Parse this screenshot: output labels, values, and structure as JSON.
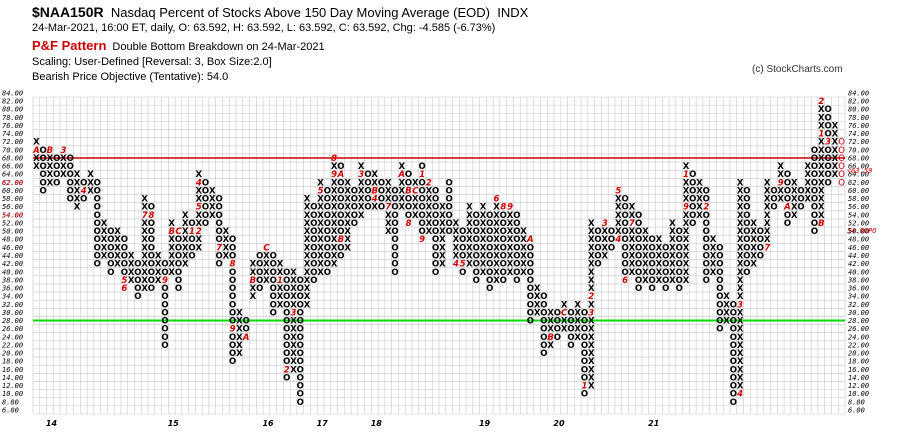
{
  "header": {
    "symbol": "$NAA150R",
    "name": "Nasdaq Percent of Stocks Above 150 Day Moving Average (EOD)",
    "exchange": "INDX",
    "quote": "24-Mar-2021, 16:00 ET, daily, O: 63.592, H: 63.592, L: 63.592, C: 63.592, Chg: -4.585 (-6.73%)",
    "pattern_title": "P&F Pattern",
    "pattern_text": "Double Bottom Breakdown on 24-Mar-2021",
    "scaling": "Scaling: User-Defined [Reversal: 3, Box Size:2.0]",
    "objective": "Bearish Price Objective (Tentative): 54.0",
    "copyright": "(c) StockCharts.com"
  },
  "chart_data": {
    "type": "point-and-figure",
    "box_size": 2.0,
    "reversal": 3,
    "ylim": [
      6,
      84
    ],
    "y_ticks": [
      84,
      82,
      80,
      78,
      76,
      74,
      72,
      70,
      68,
      66,
      64,
      62,
      60,
      58,
      56,
      54,
      52,
      50,
      48,
      46,
      44,
      42,
      40,
      38,
      36,
      34,
      32,
      30,
      28,
      26,
      24,
      22,
      20,
      18,
      16,
      14,
      12,
      10,
      8,
      6
    ],
    "year_labels": [
      "14",
      "15",
      "16",
      "17",
      "18",
      "19",
      "20",
      "21"
    ],
    "year_label_columns": [
      2,
      20,
      34,
      42,
      50,
      66,
      77,
      91
    ],
    "resistance_level": 69,
    "support_level": 29,
    "last_price_label": "<63.59",
    "left_price_label": "62.00",
    "objective_label": "54.00PO",
    "left_objective_label": "54.00",
    "columns": [
      {
        "t": "X",
        "lo": 66,
        "hi": 72,
        "m": {
          "70": "A"
        }
      },
      {
        "t": "O",
        "lo": 60,
        "hi": 70,
        "m": {}
      },
      {
        "t": "X",
        "lo": 62,
        "hi": 70,
        "m": {
          "70": "B"
        }
      },
      {
        "t": "O",
        "lo": 62,
        "hi": 68,
        "m": {
          "70": "1"
        }
      },
      {
        "t": "X",
        "lo": 64,
        "hi": 70,
        "m": {
          "70": "3"
        }
      },
      {
        "t": "O",
        "lo": 58,
        "hi": 68,
        "m": {}
      },
      {
        "t": "X",
        "lo": 56,
        "hi": 64,
        "m": {}
      },
      {
        "t": "O",
        "lo": 58,
        "hi": 62,
        "m": {
          "60": "4"
        }
      },
      {
        "t": "X",
        "lo": 60,
        "hi": 64,
        "m": {}
      },
      {
        "t": "O",
        "lo": 42,
        "hi": 62,
        "m": {}
      },
      {
        "t": "X",
        "lo": 44,
        "hi": 52,
        "m": {}
      },
      {
        "t": "O",
        "lo": 40,
        "hi": 50,
        "m": {}
      },
      {
        "t": "X",
        "lo": 42,
        "hi": 50,
        "m": {}
      },
      {
        "t": "O",
        "lo": 36,
        "hi": 48,
        "m": {
          "38": "5",
          "36": "6"
        }
      },
      {
        "t": "X",
        "lo": 38,
        "hi": 44,
        "m": {}
      },
      {
        "t": "O",
        "lo": 34,
        "hi": 42,
        "m": {}
      },
      {
        "t": "X",
        "lo": 36,
        "hi": 58,
        "m": {
          "54": "7"
        }
      },
      {
        "t": "O",
        "lo": 36,
        "hi": 56,
        "m": {
          "54": "8"
        }
      },
      {
        "t": "X",
        "lo": 38,
        "hi": 44,
        "m": {}
      },
      {
        "t": "O",
        "lo": 22,
        "hi": 42,
        "m": {
          "38": "9"
        }
      },
      {
        "t": "X",
        "lo": 40,
        "hi": 52,
        "m": {
          "50": "B"
        }
      },
      {
        "t": "O",
        "lo": 36,
        "hi": 50,
        "m": {
          "50": "C"
        }
      },
      {
        "t": "X",
        "lo": 42,
        "hi": 54,
        "m": {}
      },
      {
        "t": "O",
        "lo": 44,
        "hi": 52,
        "m": {
          "50": "1"
        }
      },
      {
        "t": "X",
        "lo": 46,
        "hi": 64,
        "m": {
          "62": "4",
          "56": "5",
          "50": "2"
        }
      },
      {
        "t": "O",
        "lo": 52,
        "hi": 62,
        "m": {}
      },
      {
        "t": "X",
        "lo": 54,
        "hi": 60,
        "m": {}
      },
      {
        "t": "O",
        "lo": 42,
        "hi": 58,
        "m": {
          "46": "7"
        }
      },
      {
        "t": "X",
        "lo": 44,
        "hi": 50,
        "m": {}
      },
      {
        "t": "O",
        "lo": 18,
        "hi": 48,
        "m": {
          "42": "8",
          "26": "9"
        }
      },
      {
        "t": "X",
        "lo": 20,
        "hi": 30,
        "m": {}
      },
      {
        "t": "O",
        "lo": 24,
        "hi": 28,
        "m": {
          "24": "A"
        }
      },
      {
        "t": "X",
        "lo": 34,
        "hi": 42,
        "m": {
          "38": "B"
        }
      },
      {
        "t": "O",
        "lo": 36,
        "hi": 44,
        "m": {}
      },
      {
        "t": "X",
        "lo": 38,
        "hi": 46,
        "m": {
          "46": "C"
        }
      },
      {
        "t": "O",
        "lo": 30,
        "hi": 44,
        "m": {}
      },
      {
        "t": "X",
        "lo": 32,
        "hi": 42,
        "m": {
          "38": "1"
        }
      },
      {
        "t": "O",
        "lo": 14,
        "hi": 40,
        "m": {
          "16": "2"
        }
      },
      {
        "t": "X",
        "lo": 16,
        "hi": 40,
        "m": {
          "30": "3"
        }
      },
      {
        "t": "O",
        "lo": 8,
        "hi": 38,
        "m": {}
      },
      {
        "t": "X",
        "lo": 32,
        "hi": 58,
        "m": {}
      },
      {
        "t": "O",
        "lo": 38,
        "hi": 56,
        "m": {
          "58": "4"
        }
      },
      {
        "t": "X",
        "lo": 40,
        "hi": 62,
        "m": {
          "60": "5"
        }
      },
      {
        "t": "O",
        "lo": 40,
        "hi": 60,
        "m": {}
      },
      {
        "t": "X",
        "lo": 42,
        "hi": 68,
        "m": {
          "68": "8",
          "64": "9"
        }
      },
      {
        "t": "O",
        "lo": 44,
        "hi": 66,
        "m": {
          "64": "A",
          "48": "B"
        }
      },
      {
        "t": "X",
        "lo": 46,
        "hi": 62,
        "m": {}
      },
      {
        "t": "O",
        "lo": 52,
        "hi": 60,
        "m": {}
      },
      {
        "t": "X",
        "lo": 54,
        "hi": 66,
        "m": {
          "64": "3"
        }
      },
      {
        "t": "O",
        "lo": 56,
        "hi": 64,
        "m": {}
      },
      {
        "t": "X",
        "lo": 56,
        "hi": 64,
        "m": {
          "58": "4",
          "60": "B"
        }
      },
      {
        "t": "O",
        "lo": 56,
        "hi": 62,
        "m": {}
      },
      {
        "t": "X",
        "lo": 50,
        "hi": 62,
        "m": {
          "56": "7"
        }
      },
      {
        "t": "O",
        "lo": 40,
        "hi": 60,
        "m": {}
      },
      {
        "t": "X",
        "lo": 56,
        "hi": 66,
        "m": {
          "64": "A"
        }
      },
      {
        "t": "O",
        "lo": 52,
        "hi": 64,
        "m": {
          "60": "B",
          "52": "8"
        }
      },
      {
        "t": "X",
        "lo": 54,
        "hi": 62,
        "m": {
          "60": "C"
        }
      },
      {
        "t": "O",
        "lo": 48,
        "hi": 66,
        "m": {
          "64": "1",
          "48": "9"
        }
      },
      {
        "t": "X",
        "lo": 50,
        "hi": 62,
        "m": {
          "62": "2"
        }
      },
      {
        "t": "O",
        "lo": 40,
        "hi": 60,
        "m": {}
      },
      {
        "t": "X",
        "lo": 42,
        "hi": 56,
        "m": {}
      },
      {
        "t": "O",
        "lo": 50,
        "hi": 62,
        "m": {}
      },
      {
        "t": "X",
        "lo": 42,
        "hi": 52,
        "m": {
          "42": "4"
        }
      },
      {
        "t": "O",
        "lo": 40,
        "hi": 50,
        "m": {
          "42": "5"
        }
      },
      {
        "t": "X",
        "lo": 42,
        "hi": 56,
        "m": {}
      },
      {
        "t": "O",
        "lo": 38,
        "hi": 54,
        "m": {}
      },
      {
        "t": "X",
        "lo": 40,
        "hi": 56,
        "m": {}
      },
      {
        "t": "O",
        "lo": 36,
        "hi": 54,
        "m": {}
      },
      {
        "t": "X",
        "lo": 38,
        "hi": 58,
        "m": {
          "58": "6"
        }
      },
      {
        "t": "O",
        "lo": 38,
        "hi": 56,
        "m": {
          "56": "8"
        }
      },
      {
        "t": "X",
        "lo": 40,
        "hi": 56,
        "m": {
          "56": "9"
        }
      },
      {
        "t": "O",
        "lo": 38,
        "hi": 54,
        "m": {}
      },
      {
        "t": "X",
        "lo": 40,
        "hi": 50,
        "m": {}
      },
      {
        "t": "O",
        "lo": 28,
        "hi": 48,
        "m": {
          "48": "A"
        }
      },
      {
        "t": "X",
        "lo": 30,
        "hi": 36,
        "m": {}
      },
      {
        "t": "O",
        "lo": 20,
        "hi": 34,
        "m": {}
      },
      {
        "t": "X",
        "lo": 22,
        "hi": 30,
        "m": {
          "24": "B"
        }
      },
      {
        "t": "O",
        "lo": 24,
        "hi": 30,
        "m": {}
      },
      {
        "t": "X",
        "lo": 26,
        "hi": 32,
        "m": {
          "30": "C"
        }
      },
      {
        "t": "O",
        "lo": 22,
        "hi": 30,
        "m": {}
      },
      {
        "t": "X",
        "lo": 24,
        "hi": 32,
        "m": {}
      },
      {
        "t": "O",
        "lo": 10,
        "hi": 30,
        "m": {
          "12": "1"
        }
      },
      {
        "t": "X",
        "lo": 12,
        "hi": 52,
        "m": {
          "34": "2",
          "30": "3"
        }
      },
      {
        "t": "O",
        "lo": 42,
        "hi": 50,
        "m": {}
      },
      {
        "t": "X",
        "lo": 44,
        "hi": 52,
        "m": {
          "52": "3"
        }
      },
      {
        "t": "O",
        "lo": 46,
        "hi": 50,
        "m": {}
      },
      {
        "t": "X",
        "lo": 48,
        "hi": 60,
        "m": {
          "60": "5",
          "48": "4"
        }
      },
      {
        "t": "O",
        "lo": 38,
        "hi": 58,
        "m": {
          "38": "6"
        }
      },
      {
        "t": "X",
        "lo": 40,
        "hi": 56,
        "m": {
          "52": "7"
        }
      },
      {
        "t": "O",
        "lo": 36,
        "hi": 54,
        "m": {}
      },
      {
        "t": "X",
        "lo": 38,
        "hi": 50,
        "m": {}
      },
      {
        "t": "O",
        "lo": 36,
        "hi": 48,
        "m": {}
      },
      {
        "t": "X",
        "lo": 38,
        "hi": 48,
        "m": {}
      },
      {
        "t": "O",
        "lo": 36,
        "hi": 46,
        "m": {}
      },
      {
        "t": "X",
        "lo": 38,
        "hi": 52,
        "m": {}
      },
      {
        "t": "O",
        "lo": 36,
        "hi": 50,
        "m": {}
      },
      {
        "t": "X",
        "lo": 38,
        "hi": 66,
        "m": {
          "56": "9",
          "64": "1"
        }
      },
      {
        "t": "O",
        "lo": 52,
        "hi": 64,
        "m": {}
      },
      {
        "t": "X",
        "lo": 54,
        "hi": 62,
        "m": {}
      },
      {
        "t": "O",
        "lo": 38,
        "hi": 60,
        "m": {
          "56": "2"
        }
      },
      {
        "t": "X",
        "lo": 40,
        "hi": 48,
        "m": {}
      },
      {
        "t": "O",
        "lo": 26,
        "hi": 46,
        "m": {}
      },
      {
        "t": "X",
        "lo": 28,
        "hi": 34,
        "m": {}
      },
      {
        "t": "O",
        "lo": 8,
        "hi": 32,
        "m": {}
      },
      {
        "t": "X",
        "lo": 10,
        "hi": 62,
        "m": {
          "10": "4",
          "32": "3"
        }
      },
      {
        "t": "O",
        "lo": 40,
        "hi": 60,
        "m": {}
      },
      {
        "t": "X",
        "lo": 42,
        "hi": 52,
        "m": {}
      },
      {
        "t": "O",
        "lo": 44,
        "hi": 50,
        "m": {}
      },
      {
        "t": "X",
        "lo": 46,
        "hi": 62,
        "m": {
          "46": "7"
        }
      },
      {
        "t": "O",
        "lo": 56,
        "hi": 60,
        "m": {}
      },
      {
        "t": "X",
        "lo": 58,
        "hi": 66,
        "m": {
          "62": "9"
        }
      },
      {
        "t": "O",
        "lo": 52,
        "hi": 64,
        "m": {
          "56": "A"
        }
      },
      {
        "t": "X",
        "lo": 54,
        "hi": 62,
        "m": {}
      },
      {
        "t": "O",
        "lo": 56,
        "hi": 60,
        "m": {}
      },
      {
        "t": "X",
        "lo": 58,
        "hi": 66,
        "m": {}
      },
      {
        "t": "O",
        "lo": 50,
        "hi": 70,
        "m": {}
      },
      {
        "t": "X",
        "lo": 52,
        "hi": 82,
        "m": {
          "82": "2",
          "74": "1",
          "52": "B"
        }
      },
      {
        "t": "O",
        "lo": 62,
        "hi": 80,
        "m": {
          "72": "3"
        }
      },
      {
        "t": "X",
        "lo": 64,
        "hi": 76,
        "m": {}
      },
      {
        "t": "O",
        "lo": 62,
        "hi": 72,
        "m": {}
      }
    ]
  }
}
